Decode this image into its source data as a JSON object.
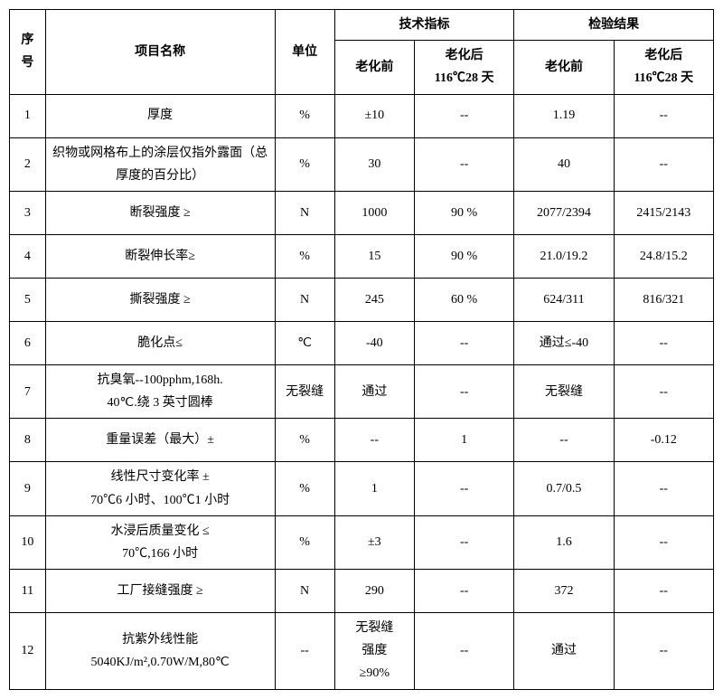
{
  "header": {
    "seq": "序\n号",
    "name": "项目名称",
    "unit": "单位",
    "spec_group": "技术指标",
    "res_group": "检验结果",
    "before": "老化前",
    "after": "老化后\n116℃28 天",
    "res_before": "老化前",
    "res_after": "老化后\n116℃28 天"
  },
  "rows": [
    {
      "seq": "1",
      "name": "厚度",
      "unit": "%",
      "s1": "±10",
      "s2": "--",
      "r1": "1.19",
      "r2": "--"
    },
    {
      "seq": "2",
      "name": "织物或网格布上的涂层仅指外露面（总厚度的百分比）",
      "unit": "%",
      "s1": "30",
      "s2": "--",
      "r1": "40",
      "r2": "--"
    },
    {
      "seq": "3",
      "name": "断裂强度  ≥",
      "unit": "N",
      "s1": "1000",
      "s2": "90 %",
      "r1": "2077/2394",
      "r2": "2415/2143"
    },
    {
      "seq": "4",
      "name": "断裂伸长率≥",
      "unit": "%",
      "s1": "15",
      "s2": "90 %",
      "r1": "21.0/19.2",
      "r2": "24.8/15.2"
    },
    {
      "seq": "5",
      "name": "撕裂强度  ≥",
      "unit": "N",
      "s1": "245",
      "s2": "60 %",
      "r1": "624/311",
      "r2": "816/321"
    },
    {
      "seq": "6",
      "name": "脆化点≤",
      "unit": "℃",
      "s1": "-40",
      "s2": "--",
      "r1": "通过≤-40",
      "r2": "--"
    },
    {
      "seq": "7",
      "name": "抗臭氧--100pphm,168h.\n40℃.绕 3 英寸圆棒",
      "unit": "无裂缝",
      "s1": "通过",
      "s2": "--",
      "r1": "无裂缝",
      "r2": "--"
    },
    {
      "seq": "8",
      "name": "重量误差（最大）±",
      "unit": "%",
      "s1": "--",
      "s2": "1",
      "r1": "--",
      "r2": "-0.12"
    },
    {
      "seq": "9",
      "name": "线性尺寸变化率  ±\n70℃6 小时、100℃1 小时",
      "unit": "%",
      "s1": "1",
      "s2": "--",
      "r1": "0.7/0.5",
      "r2": "--"
    },
    {
      "seq": "10",
      "name": "水浸后质量变化  ≤\n70℃,166 小时",
      "unit": "%",
      "s1": "±3",
      "s2": "--",
      "r1": "1.6",
      "r2": "--"
    },
    {
      "seq": "11",
      "name": "工厂接缝强度  ≥",
      "unit": "N",
      "s1": "290",
      "s2": "--",
      "r1": "372",
      "r2": "--"
    },
    {
      "seq": "12",
      "name": "抗紫外线性能\n5040KJ/m²,0.70W/M,80℃",
      "unit": "--",
      "s1": "无裂缝\n强度\n≥90%",
      "s2": "--",
      "r1": "通过",
      "r2": "--"
    }
  ]
}
